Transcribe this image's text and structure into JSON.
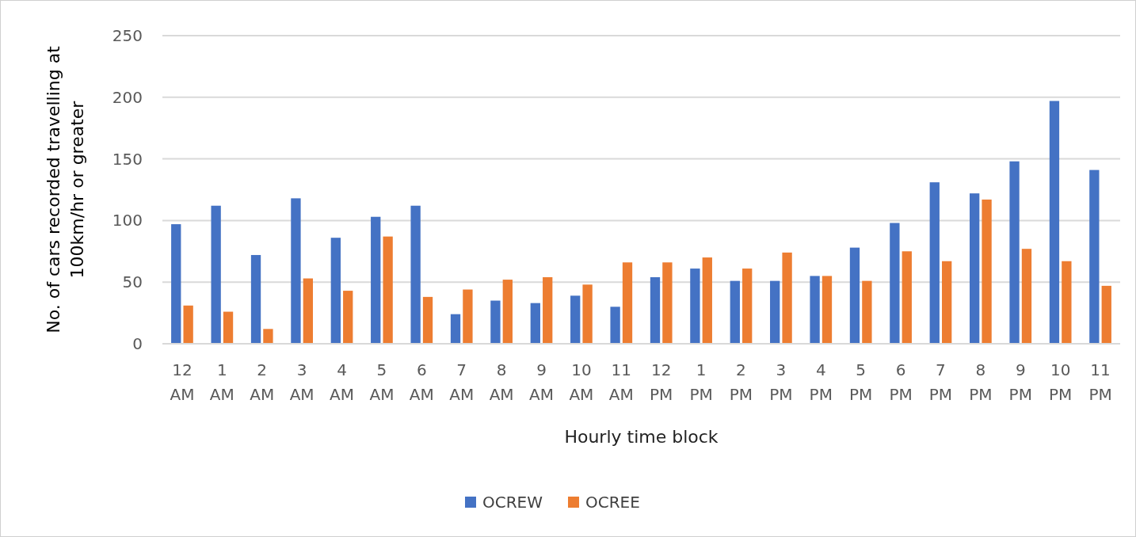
{
  "chart_data": {
    "type": "bar",
    "xlabel": "Hourly time block",
    "ylabel": "No. of cars recorded travelling at 100km/hr or greater",
    "categories": [
      "12 AM",
      "1 AM",
      "2 AM",
      "3 AM",
      "4 AM",
      "5 AM",
      "6 AM",
      "7 AM",
      "8 AM",
      "9 AM",
      "10 AM",
      "11 AM",
      "12 PM",
      "1 PM",
      "2 PM",
      "3 PM",
      "4 PM",
      "5 PM",
      "6 PM",
      "7 PM",
      "8 PM",
      "9 PM",
      "10 PM",
      "11 PM"
    ],
    "series": [
      {
        "name": "OCREW",
        "color": "#4472c4",
        "values": [
          97,
          112,
          72,
          118,
          86,
          103,
          112,
          24,
          35,
          33,
          39,
          30,
          54,
          61,
          51,
          51,
          55,
          78,
          98,
          131,
          122,
          148,
          197,
          141
        ]
      },
      {
        "name": "OCREE",
        "color": "#ed7d31",
        "values": [
          31,
          26,
          12,
          53,
          43,
          87,
          38,
          44,
          52,
          54,
          48,
          66,
          66,
          70,
          61,
          74,
          55,
          51,
          75,
          67,
          117,
          77,
          67,
          47
        ]
      }
    ],
    "ylim": [
      0,
      250
    ],
    "yticks": [
      0,
      50,
      100,
      150,
      200,
      250
    ],
    "grid": "y",
    "legend": "bottom"
  }
}
